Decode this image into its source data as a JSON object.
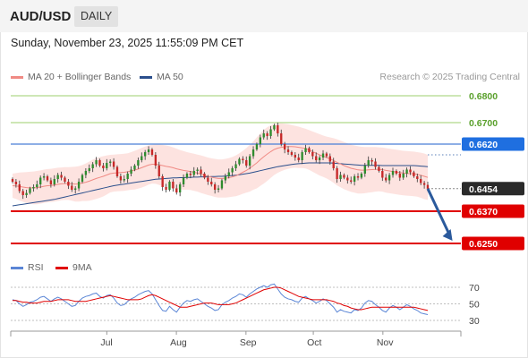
{
  "header": {
    "symbol": "AUD/USD",
    "timeframe": "DAILY"
  },
  "datetime": "Sunday, November 23, 2025 11:55:09 PM CET",
  "copyright": "Research © 2025 Trading Central",
  "legend": {
    "ma20": {
      "label": "MA 20 + Bollinger Bands",
      "color": "#f08a84"
    },
    "ma50": {
      "label": "MA 50",
      "color": "#2b4f8c"
    },
    "rsi": {
      "label": "RSI",
      "color": "#5b86d6"
    },
    "rsi_ma": {
      "label": "9MA",
      "color": "#e00000"
    }
  },
  "chart_data": [
    {
      "type": "candlestick",
      "panel": "price",
      "y_range": [
        0.6225,
        0.6815
      ],
      "date_range": [
        "2025-05-20",
        "2025-11-21"
      ],
      "x_tick_labels": [
        "Jul",
        "Aug",
        "Sep",
        "Oct",
        "Nov"
      ],
      "x_tick_dates": [
        "2025-07-01",
        "2025-08-01",
        "2025-09-01",
        "2025-10-01",
        "2025-11-01"
      ],
      "y_tick_labels": [
        "0.6800",
        "0.6700"
      ],
      "levels": [
        {
          "value": 0.68,
          "label": "0.6800",
          "style": "gridline",
          "color": "#9ccf6e"
        },
        {
          "value": 0.67,
          "label": "0.6700",
          "style": "gridline",
          "color": "#9ccf6e"
        },
        {
          "value": 0.662,
          "label": "0.6620",
          "style": "resistance",
          "color": "#4a7fd6",
          "tag_bg": "#1f6fe0"
        },
        {
          "value": 0.6454,
          "label": "0.6454",
          "style": "last_price",
          "color": "#222222",
          "tag_bg": "#2a2a2a"
        },
        {
          "value": 0.637,
          "label": "0.6370",
          "style": "support",
          "color": "#e00000",
          "tag_bg": "#e00000"
        },
        {
          "value": 0.625,
          "label": "0.6250",
          "style": "support",
          "color": "#e00000",
          "tag_bg": "#e00000"
        }
      ],
      "forecast_arrow": {
        "from": {
          "date": "2025-11-21",
          "value": 0.6454
        },
        "to": {
          "date": "2025-12-02",
          "value": 0.626
        },
        "color": "#2b5a9c"
      },
      "series": [
        {
          "name": "AUD/USD",
          "role": "close",
          "values": [
            0.648,
            0.647,
            0.6445,
            0.643,
            0.6438,
            0.6455,
            0.646,
            0.647,
            0.6495,
            0.65,
            0.6485,
            0.647,
            0.649,
            0.6505,
            0.6495,
            0.648,
            0.6465,
            0.645,
            0.6455,
            0.648,
            0.6505,
            0.652,
            0.653,
            0.6545,
            0.656,
            0.654,
            0.653,
            0.655,
            0.6555,
            0.6535,
            0.65,
            0.6485,
            0.649,
            0.651,
            0.6525,
            0.654,
            0.656,
            0.6575,
            0.659,
            0.66,
            0.658,
            0.654,
            0.65,
            0.646,
            0.645,
            0.648,
            0.6455,
            0.644,
            0.647,
            0.6495,
            0.651,
            0.6505,
            0.652,
            0.6525,
            0.651,
            0.6495,
            0.648,
            0.647,
            0.645,
            0.6455,
            0.6485,
            0.65,
            0.6515,
            0.653,
            0.6545,
            0.6565,
            0.656,
            0.654,
            0.6575,
            0.66,
            0.662,
            0.6645,
            0.666,
            0.665,
            0.6675,
            0.669,
            0.666,
            0.662,
            0.66,
            0.659,
            0.658,
            0.657,
            0.656,
            0.659,
            0.6605,
            0.659,
            0.6575,
            0.656,
            0.657,
            0.6585,
            0.6575,
            0.6555,
            0.653,
            0.649,
            0.6505,
            0.6495,
            0.6485,
            0.648,
            0.65,
            0.6495,
            0.651,
            0.654,
            0.656,
            0.6555,
            0.6535,
            0.652,
            0.6495,
            0.6485,
            0.6505,
            0.652,
            0.651,
            0.6495,
            0.651,
            0.6525,
            0.6515,
            0.65,
            0.649,
            0.6475,
            0.6468,
            0.6454
          ]
        },
        {
          "name": "MA 20",
          "role": "ma20",
          "values": [
            0.6465,
            0.6464,
            0.6462,
            0.646,
            0.6458,
            0.6457,
            0.6457,
            0.6458,
            0.646,
            0.6463,
            0.6465,
            0.6466,
            0.6468,
            0.647,
            0.6472,
            0.6473,
            0.6473,
            0.6472,
            0.6471,
            0.6472,
            0.6475,
            0.6478,
            0.6482,
            0.6487,
            0.6492,
            0.6496,
            0.65,
            0.6505,
            0.651,
            0.6512,
            0.6513,
            0.6514,
            0.6515,
            0.6517,
            0.652,
            0.6523,
            0.6527,
            0.6532,
            0.6537,
            0.6542,
            0.6545,
            0.6545,
            0.6543,
            0.654,
            0.6537,
            0.6535,
            0.6532,
            0.6528,
            0.6525,
            0.6522,
            0.652,
            0.6518,
            0.6515,
            0.6512,
            0.6508,
            0.6504,
            0.65,
            0.6497,
            0.6494,
            0.6492,
            0.6492,
            0.6493,
            0.6495,
            0.6498,
            0.6502,
            0.6508,
            0.6515,
            0.6522,
            0.653,
            0.654,
            0.655,
            0.6562,
            0.6573,
            0.6583,
            0.6592,
            0.66,
            0.6605,
            0.6608,
            0.661,
            0.6611,
            0.6611,
            0.661,
            0.6608,
            0.6606,
            0.6603,
            0.6598,
            0.6592,
            0.6586,
            0.658,
            0.6575,
            0.657,
            0.6565,
            0.6559,
            0.6552,
            0.6546,
            0.654,
            0.6535,
            0.653,
            0.6527,
            0.6524,
            0.6523,
            0.6523,
            0.6524,
            0.6525,
            0.6526,
            0.6526,
            0.6525,
            0.6522,
            0.652,
            0.6518,
            0.6516,
            0.6514,
            0.6512,
            0.6511,
            0.651,
            0.6509,
            0.6507,
            0.6504,
            0.65,
            0.6496
          ]
        },
        {
          "name": "Bollinger Upper",
          "role": "bb_upper",
          "values": [
            0.651,
            0.6512,
            0.6514,
            0.6515,
            0.6516,
            0.6517,
            0.6518,
            0.652,
            0.6522,
            0.6525,
            0.6527,
            0.6528,
            0.653,
            0.6532,
            0.6533,
            0.6534,
            0.6534,
            0.6535,
            0.6536,
            0.6538,
            0.6542,
            0.6548,
            0.6555,
            0.6562,
            0.6568,
            0.6572,
            0.6575,
            0.6578,
            0.658,
            0.6581,
            0.6582,
            0.6583,
            0.6584,
            0.6586,
            0.659,
            0.6595,
            0.66,
            0.6606,
            0.6611,
            0.6615,
            0.6617,
            0.6618,
            0.6618,
            0.6617,
            0.6615,
            0.6612,
            0.6608,
            0.6603,
            0.6598,
            0.6594,
            0.659,
            0.6587,
            0.6584,
            0.6581,
            0.6578,
            0.6574,
            0.657,
            0.6567,
            0.6565,
            0.6563,
            0.6563,
            0.6565,
            0.6568,
            0.6572,
            0.6578,
            0.6586,
            0.6595,
            0.6605,
            0.6617,
            0.663,
            0.6645,
            0.666,
            0.6673,
            0.6683,
            0.669,
            0.6695,
            0.6697,
            0.6697,
            0.6696,
            0.6694,
            0.6691,
            0.6688,
            0.6685,
            0.6681,
            0.6677,
            0.6672,
            0.6667,
            0.6662,
            0.6657,
            0.6652,
            0.6648,
            0.6645,
            0.6642,
            0.6638,
            0.6633,
            0.6628,
            0.6623,
            0.6618,
            0.6615,
            0.6612,
            0.661,
            0.6609,
            0.6609,
            0.6609,
            0.6609,
            0.6608,
            0.6607,
            0.6605,
            0.6603,
            0.6601,
            0.6599,
            0.6597,
            0.6595,
            0.6594,
            0.6593,
            0.6592,
            0.659,
            0.6588,
            0.6585,
            0.658
          ]
        },
        {
          "name": "Bollinger Lower",
          "role": "bb_lower",
          "values": [
            0.642,
            0.6416,
            0.641,
            0.6405,
            0.64,
            0.6397,
            0.6396,
            0.6396,
            0.6398,
            0.6401,
            0.6403,
            0.6404,
            0.6406,
            0.6408,
            0.6411,
            0.6412,
            0.6412,
            0.6409,
            0.6406,
            0.6406,
            0.6408,
            0.6408,
            0.6409,
            0.6412,
            0.6416,
            0.642,
            0.6425,
            0.6432,
            0.644,
            0.6443,
            0.6444,
            0.6445,
            0.6446,
            0.6448,
            0.645,
            0.6451,
            0.6454,
            0.6458,
            0.6463,
            0.6469,
            0.6473,
            0.6472,
            0.6468,
            0.6463,
            0.6459,
            0.6458,
            0.6456,
            0.6453,
            0.6452,
            0.645,
            0.645,
            0.6449,
            0.6446,
            0.6443,
            0.6438,
            0.6434,
            0.643,
            0.6427,
            0.6423,
            0.6421,
            0.6421,
            0.6421,
            0.6422,
            0.6424,
            0.6426,
            0.643,
            0.6435,
            0.6439,
            0.6443,
            0.645,
            0.6455,
            0.6464,
            0.6473,
            0.6483,
            0.6494,
            0.6505,
            0.6513,
            0.6519,
            0.6524,
            0.6528,
            0.6531,
            0.6532,
            0.6531,
            0.6531,
            0.6529,
            0.6524,
            0.6517,
            0.651,
            0.6503,
            0.6498,
            0.6492,
            0.6485,
            0.6476,
            0.6466,
            0.6459,
            0.6452,
            0.6447,
            0.6442,
            0.6439,
            0.6436,
            0.6436,
            0.6437,
            0.6439,
            0.6441,
            0.6443,
            0.6444,
            0.6443,
            0.6439,
            0.6437,
            0.6435,
            0.6433,
            0.6431,
            0.6429,
            0.6428,
            0.6427,
            0.6426,
            0.6424,
            0.642,
            0.6415,
            0.6412
          ]
        },
        {
          "name": "MA 50",
          "role": "ma50",
          "values": [
            0.639,
            0.6392,
            0.6394,
            0.6396,
            0.6398,
            0.64,
            0.6402,
            0.6404,
            0.6406,
            0.6408,
            0.641,
            0.6412,
            0.6414,
            0.6417,
            0.642,
            0.6423,
            0.6426,
            0.6429,
            0.6432,
            0.6435,
            0.6438,
            0.6441,
            0.6444,
            0.6447,
            0.645,
            0.6453,
            0.6456,
            0.6459,
            0.6462,
            0.6465,
            0.6467,
            0.6469,
            0.6471,
            0.6473,
            0.6475,
            0.6477,
            0.6479,
            0.6481,
            0.6483,
            0.6485,
            0.6487,
            0.6489,
            0.649,
            0.6491,
            0.6492,
            0.6493,
            0.6494,
            0.6494,
            0.6495,
            0.6495,
            0.6496,
            0.6496,
            0.6497,
            0.6497,
            0.6498,
            0.6498,
            0.6498,
            0.6499,
            0.6499,
            0.65,
            0.65,
            0.6501,
            0.6502,
            0.6503,
            0.6504,
            0.6506,
            0.6508,
            0.651,
            0.6512,
            0.6515,
            0.6518,
            0.6521,
            0.6524,
            0.6527,
            0.653,
            0.6533,
            0.6536,
            0.6538,
            0.654,
            0.6542,
            0.6544,
            0.6546,
            0.6547,
            0.6548,
            0.6549,
            0.655,
            0.655,
            0.655,
            0.655,
            0.655,
            0.655,
            0.655,
            0.6549,
            0.6548,
            0.6547,
            0.6546,
            0.6545,
            0.6544,
            0.6543,
            0.6542,
            0.6541,
            0.6541,
            0.6541,
            0.6541,
            0.6541,
            0.6541,
            0.654,
            0.654,
            0.654,
            0.654,
            0.654,
            0.654,
            0.654,
            0.654,
            0.654,
            0.654,
            0.6539,
            0.6538,
            0.6537,
            0.6536
          ]
        }
      ]
    },
    {
      "type": "line",
      "panel": "rsi",
      "y_range": [
        20,
        80
      ],
      "y_tick_labels": [
        "70",
        "50",
        "30"
      ],
      "y_ticks": [
        70,
        50,
        30
      ],
      "series": [
        {
          "name": "RSI",
          "values": [
            55,
            54,
            50,
            47,
            49,
            52,
            53,
            55,
            58,
            59,
            56,
            53,
            56,
            58,
            56,
            53,
            50,
            47,
            48,
            53,
            57,
            59,
            60,
            62,
            63,
            59,
            57,
            60,
            61,
            57,
            51,
            48,
            49,
            53,
            56,
            58,
            61,
            63,
            65,
            66,
            62,
            55,
            48,
            42,
            41,
            47,
            43,
            40,
            46,
            51,
            54,
            53,
            55,
            56,
            53,
            50,
            47,
            45,
            42,
            43,
            49,
            52,
            54,
            57,
            59,
            62,
            61,
            58,
            62,
            65,
            68,
            70,
            72,
            70,
            73,
            74,
            68,
            62,
            58,
            56,
            55,
            53,
            52,
            57,
            59,
            56,
            54,
            51,
            53,
            56,
            54,
            50,
            46,
            40,
            43,
            41,
            40,
            39,
            43,
            42,
            45,
            51,
            54,
            53,
            49,
            46,
            42,
            40,
            45,
            48,
            46,
            43,
            46,
            49,
            47,
            44,
            42,
            39,
            38,
            37
          ]
        },
        {
          "name": "9MA",
          "values": [
            54,
            54,
            53,
            52,
            52,
            51,
            51,
            51,
            52,
            53,
            53,
            53,
            54,
            55,
            55,
            55,
            55,
            54,
            53,
            53,
            53,
            53,
            54,
            55,
            56,
            57,
            58,
            59,
            60,
            59,
            58,
            57,
            56,
            55,
            55,
            55,
            55,
            56,
            58,
            60,
            61,
            60,
            58,
            56,
            54,
            52,
            50,
            48,
            46,
            46,
            46,
            47,
            48,
            49,
            50,
            51,
            51,
            51,
            50,
            49,
            49,
            49,
            49,
            50,
            51,
            53,
            55,
            57,
            59,
            61,
            63,
            65,
            67,
            68,
            69,
            70,
            70,
            69,
            67,
            65,
            63,
            61,
            59,
            58,
            57,
            56,
            55,
            55,
            55,
            55,
            55,
            54,
            53,
            51,
            50,
            48,
            47,
            45,
            44,
            43,
            43,
            44,
            45,
            46,
            46,
            46,
            46,
            46,
            46,
            46,
            46,
            46,
            46,
            46,
            46,
            46,
            45,
            44,
            43,
            42
          ]
        }
      ]
    }
  ]
}
